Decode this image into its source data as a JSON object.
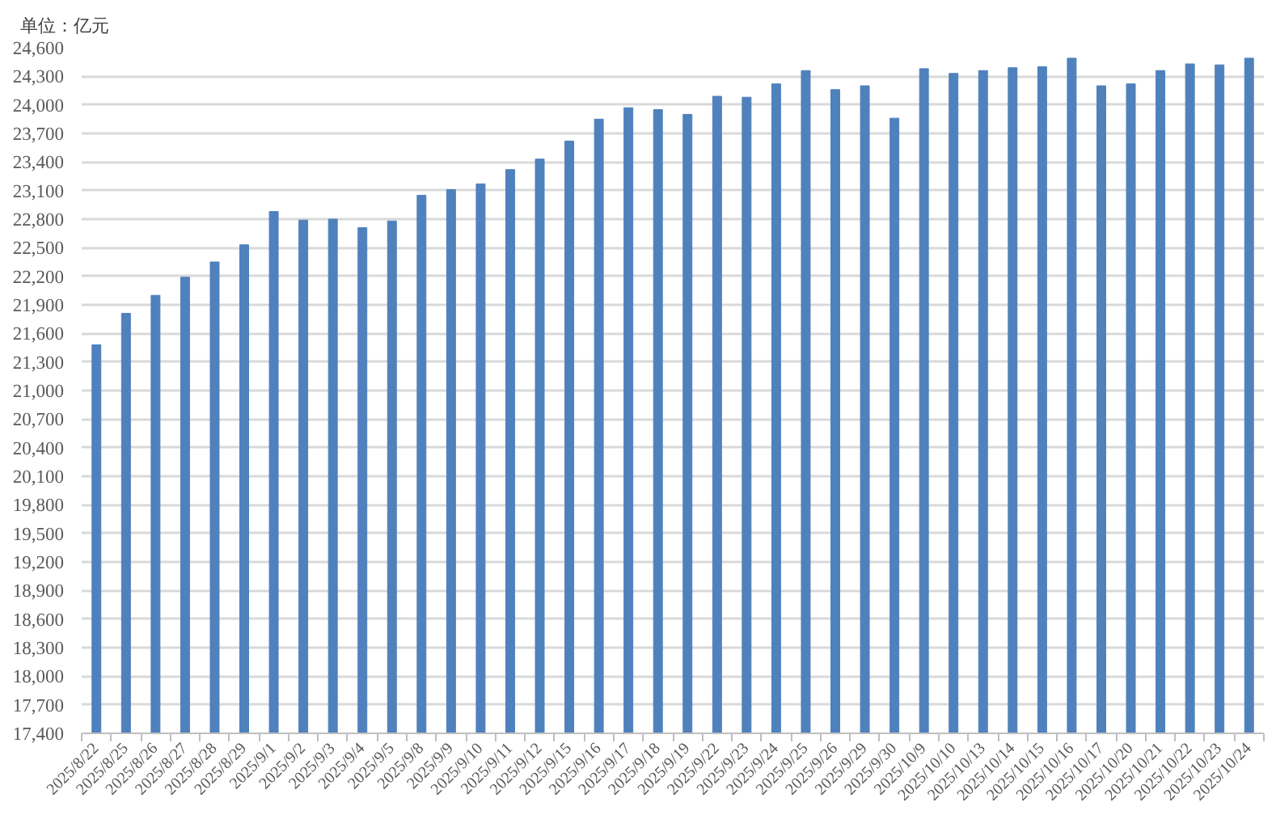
{
  "chart_data": {
    "type": "bar",
    "ylabel": "单位：亿元",
    "categories": [
      "2025/8/22",
      "2025/8/25",
      "2025/8/26",
      "2025/8/27",
      "2025/8/28",
      "2025/8/29",
      "2025/9/1",
      "2025/9/2",
      "2025/9/3",
      "2025/9/4",
      "2025/9/5",
      "2025/9/8",
      "2025/9/9",
      "2025/9/10",
      "2025/9/11",
      "2025/9/12",
      "2025/9/15",
      "2025/9/16",
      "2025/9/17",
      "2025/9/18",
      "2025/9/19",
      "2025/9/22",
      "2025/9/23",
      "2025/9/24",
      "2025/9/25",
      "2025/9/26",
      "2025/9/29",
      "2025/9/30",
      "2025/10/9",
      "2025/10/10",
      "2025/10/13",
      "2025/10/14",
      "2025/10/15",
      "2025/10/16",
      "2025/10/17",
      "2025/10/20",
      "2025/10/21",
      "2025/10/22",
      "2025/10/23",
      "2025/10/24"
    ],
    "values": [
      21480,
      21810,
      22000,
      22190,
      22350,
      22530,
      22880,
      22790,
      22800,
      22710,
      22780,
      23050,
      23110,
      23170,
      23320,
      23430,
      23620,
      23850,
      23970,
      23950,
      23900,
      24090,
      24080,
      24220,
      24360,
      24160,
      24200,
      23860,
      24380,
      24330,
      24360,
      24390,
      24400,
      24490,
      24200,
      24220,
      24360,
      24430,
      24420,
      24490
    ],
    "color": "#4f81bd",
    "ylim": [
      17400,
      24600
    ],
    "yticks": [
      {
        "value": 17400,
        "label": "17,400"
      },
      {
        "value": 17700,
        "label": "17,700"
      },
      {
        "value": 18000,
        "label": "18,000"
      },
      {
        "value": 18300,
        "label": "18,300"
      },
      {
        "value": 18600,
        "label": "18,600"
      },
      {
        "value": 18900,
        "label": "18,900"
      },
      {
        "value": 19200,
        "label": "19,200"
      },
      {
        "value": 19500,
        "label": "19,500"
      },
      {
        "value": 19800,
        "label": "19,800"
      },
      {
        "value": 20100,
        "label": "20,100"
      },
      {
        "value": 20400,
        "label": "20,400"
      },
      {
        "value": 20700,
        "label": "20,700"
      },
      {
        "value": 21000,
        "label": "21,000"
      },
      {
        "value": 21300,
        "label": "21,300"
      },
      {
        "value": 21600,
        "label": "21,600"
      },
      {
        "value": 21900,
        "label": "21,900"
      },
      {
        "value": 22200,
        "label": "22,200"
      },
      {
        "value": 22500,
        "label": "22,500"
      },
      {
        "value": 22800,
        "label": "22,800"
      },
      {
        "value": 23100,
        "label": "23,100"
      },
      {
        "value": 23400,
        "label": "23,400"
      },
      {
        "value": 23700,
        "label": "23,700"
      },
      {
        "value": 24000,
        "label": "24,000"
      },
      {
        "value": 24300,
        "label": "24,300"
      },
      {
        "value": 24600,
        "label": "24,600"
      }
    ],
    "grid": "y"
  }
}
